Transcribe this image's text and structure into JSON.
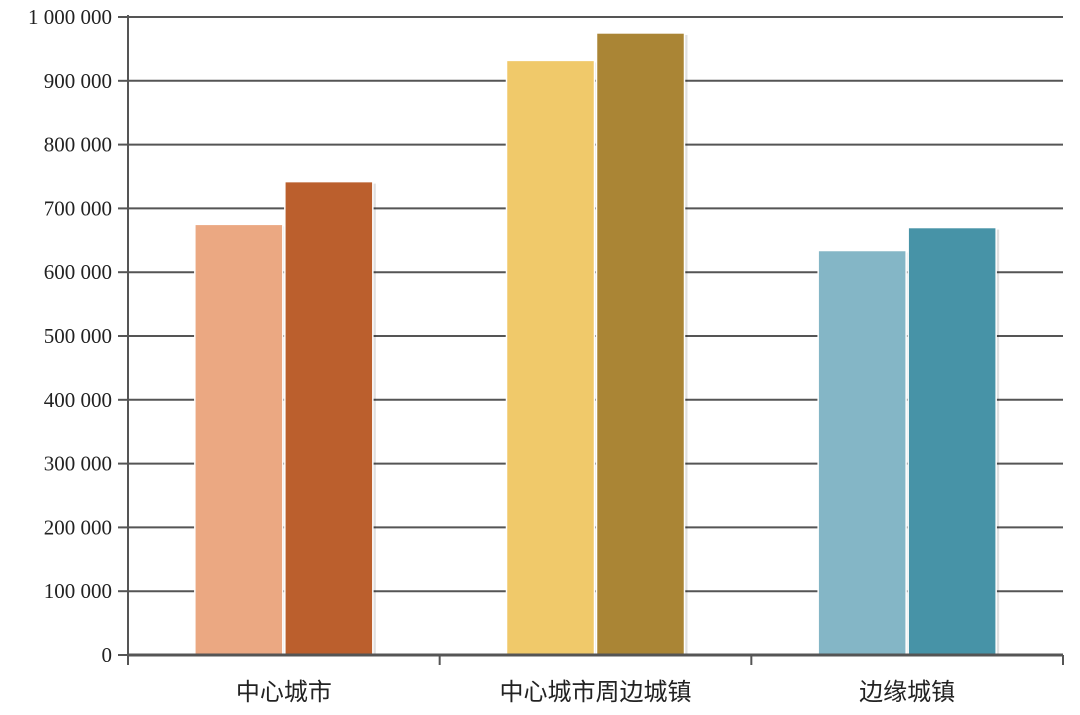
{
  "chart_data": {
    "type": "bar",
    "title": "",
    "xlabel": "",
    "ylabel": "",
    "ylim": [
      0,
      1000000
    ],
    "y_ticks": [
      0,
      100000,
      200000,
      300000,
      400000,
      500000,
      600000,
      700000,
      800000,
      900000,
      1000000
    ],
    "y_tick_labels": [
      "0",
      "100 000",
      "200 000",
      "300 000",
      "400 000",
      "500 000",
      "600 000",
      "700 000",
      "800 000",
      "900 000",
      "1 000 000"
    ],
    "grid": true,
    "legend": "none",
    "categories": [
      "中心城市",
      "中心城市周边城镇",
      "边缘城镇"
    ],
    "series": [
      {
        "values": [
          675000,
          932000,
          634000
        ],
        "colors": [
          "#EBA882",
          "#F0C96A",
          "#84B6C6"
        ]
      },
      {
        "values": [
          742000,
          975000,
          670000
        ],
        "colors": [
          "#BB5F2D",
          "#AA8535",
          "#4793A7"
        ]
      }
    ],
    "axis_color": "#555555",
    "grid_color": "#555555"
  }
}
